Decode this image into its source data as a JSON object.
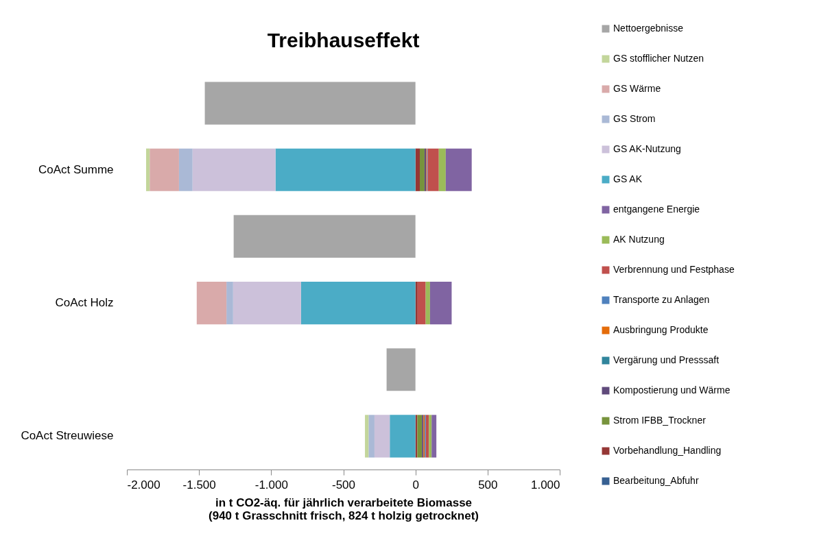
{
  "chart_data": {
    "type": "bar",
    "title": "Treibhauseffekt",
    "xlabel": "in t CO2-äq. für jährlich verarbeitete Biomasse\n(940 t Grasschnitt frisch, 824 t holzig getrocknet)",
    "orientation": "horizontal",
    "stacked": true,
    "legend": "right",
    "categories": [
      null,
      "CoAct Summe",
      null,
      "CoAct Holz",
      null,
      "CoAct Streuwiese"
    ],
    "xlim": [
      -2000,
      1000
    ],
    "xticks": [
      {
        "value": -2000,
        "label": "-2.000"
      },
      {
        "value": -1500,
        "label": "-1.500"
      },
      {
        "value": -1000,
        "label": "-1.000"
      },
      -500,
      0,
      500,
      {
        "value": 1000,
        "label": "1.000"
      }
    ],
    "series": [
      {
        "name": "Bearbeitung_Abfuhr",
        "color": "#376092",
        "values": [
          null,
          null,
          null,
          null,
          null,
          null
        ]
      },
      {
        "name": "Vorbehandlung_Handling",
        "color": "#953735",
        "values": [
          null,
          30,
          null,
          15,
          null,
          13
        ]
      },
      {
        "name": "Strom IFBB_Trockner",
        "color": "#77933c",
        "values": [
          null,
          33,
          null,
          null,
          null,
          32
        ]
      },
      {
        "name": "Kompostierung und Wärme",
        "color": "#604a7b",
        "values": [
          null,
          11,
          null,
          null,
          null,
          11
        ]
      },
      {
        "name": "Vergärung und Presssaft",
        "color": "#31859c",
        "values": [
          null,
          null,
          null,
          null,
          null,
          null
        ]
      },
      {
        "name": "Ausbringung Produkte",
        "color": "#e46c0a",
        "values": [
          null,
          5,
          null,
          null,
          null,
          8
        ]
      },
      {
        "name": "Transporte zu Anlagen",
        "color": "#4f81bd",
        "values": [
          null,
          5,
          null,
          null,
          null,
          8
        ]
      },
      {
        "name": "Verbrennung und Festphase",
        "color": "#c0504d",
        "values": [
          null,
          78,
          null,
          56,
          null,
          21
        ]
      },
      {
        "name": "AK Nutzung",
        "color": "#9bbb59",
        "values": [
          null,
          48,
          null,
          30,
          null,
          19
        ]
      },
      {
        "name": "entgangene Energie",
        "color": "#8064a2",
        "values": [
          null,
          180,
          null,
          150,
          null,
          33
        ]
      },
      {
        "name": "GS AK",
        "color": "#4bacc6",
        "values": [
          null,
          -970,
          null,
          -793,
          null,
          -178
        ]
      },
      {
        "name": "GS AK-Nutzung",
        "color": "#ccc1da",
        "values": [
          null,
          -575,
          null,
          -471,
          null,
          -106
        ]
      },
      {
        "name": "GS Strom",
        "color": "#aab9d6",
        "values": [
          null,
          -94,
          null,
          -46,
          null,
          -41
        ]
      },
      {
        "name": "GS Wärme",
        "color": "#d9aaaa",
        "values": [
          null,
          -203,
          null,
          -206,
          null,
          null
        ]
      },
      {
        "name": "GS stofflicher Nutzen",
        "color": "#c3d69b",
        "values": [
          null,
          -25,
          null,
          null,
          null,
          -25
        ]
      },
      {
        "name": "Nettoergebnisse",
        "color": "#a6a6a6",
        "values": [
          -1460,
          null,
          -1260,
          null,
          -200,
          null
        ]
      }
    ]
  }
}
